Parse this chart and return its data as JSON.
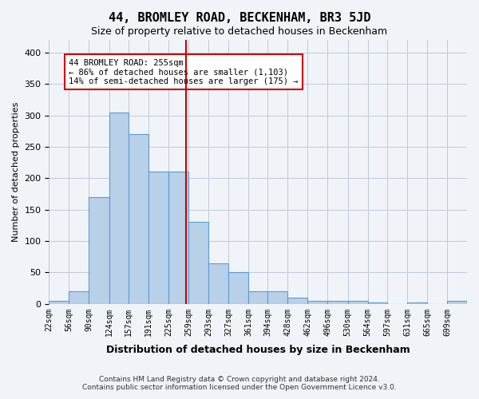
{
  "title": "44, BROMLEY ROAD, BECKENHAM, BR3 5JD",
  "subtitle": "Size of property relative to detached houses in Beckenham",
  "xlabel": "Distribution of detached houses by size in Beckenham",
  "ylabel": "Number of detached properties",
  "bar_values": [
    5,
    20,
    170,
    305,
    270,
    210,
    210,
    130,
    65,
    50,
    20,
    20,
    10,
    5,
    5,
    5,
    2,
    0,
    2,
    0,
    5
  ],
  "bin_edges": [
    22,
    56,
    90,
    124,
    157,
    191,
    225,
    259,
    293,
    327,
    361,
    394,
    428,
    462,
    496,
    530,
    564,
    597,
    631,
    665,
    699,
    733
  ],
  "tick_labels": [
    "22sqm",
    "56sqm",
    "90sqm",
    "124sqm",
    "157sqm",
    "191sqm",
    "225sqm",
    "259sqm",
    "293sqm",
    "327sqm",
    "361sqm",
    "394sqm",
    "428sqm",
    "462sqm",
    "496sqm",
    "530sqm",
    "564sqm",
    "597sqm",
    "631sqm",
    "665sqm",
    "699sqm"
  ],
  "property_size": 255,
  "property_label": "44 BROMLEY ROAD: 255sqm",
  "annotation_line1": "44 BROMLEY ROAD: 255sqm",
  "annotation_line2": "← 86% of detached houses are smaller (1,103)",
  "annotation_line3": "14% of semi-detached houses are larger (175) →",
  "vline_color": "#cc0000",
  "bar_face_color": "#b8d0e8",
  "bar_edge_color": "#5b9bd5",
  "annotation_box_color": "#ffffff",
  "annotation_box_edge": "#cc0000",
  "grid_color": "#c0c8d8",
  "ylim": [
    0,
    420
  ],
  "yticks": [
    0,
    50,
    100,
    150,
    200,
    250,
    300,
    350,
    400
  ],
  "footer_line1": "Contains HM Land Registry data © Crown copyright and database right 2024.",
  "footer_line2": "Contains public sector information licensed under the Open Government Licence v3.0.",
  "background_color": "#f0f4f8"
}
